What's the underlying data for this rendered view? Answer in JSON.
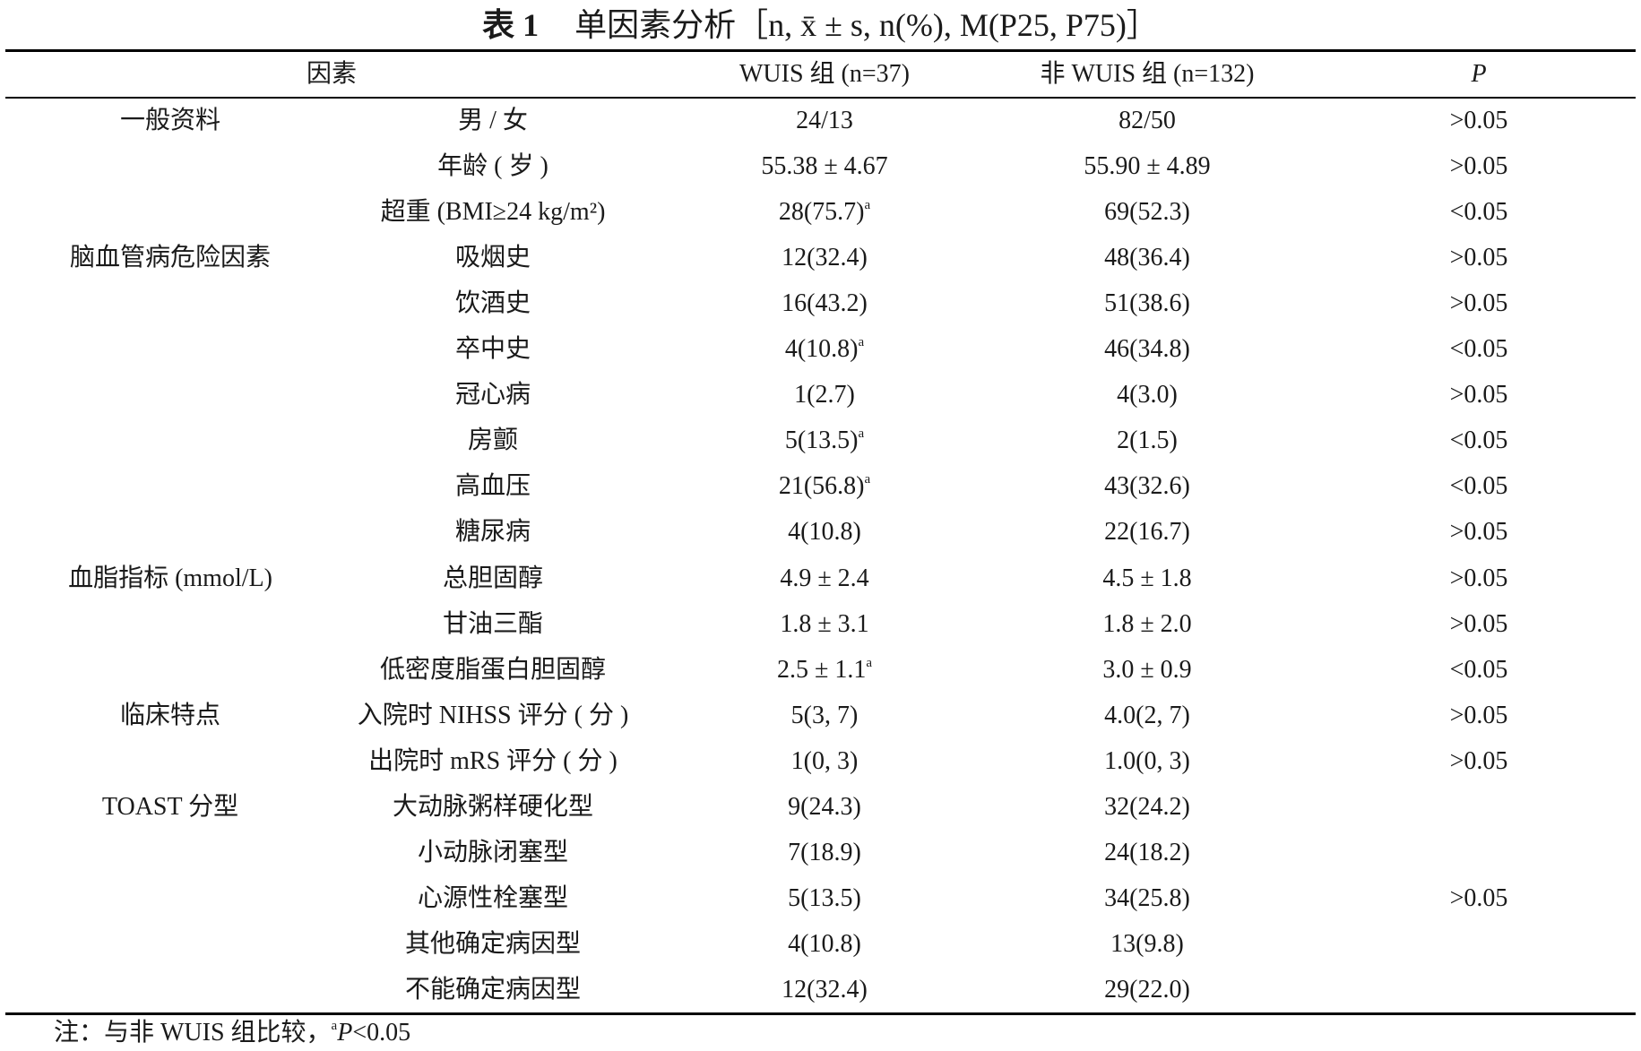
{
  "table": {
    "caption_label": "表 1",
    "caption_text": "单因素分析［n, x̄ ± s, n(%), M(P25, P75)］",
    "headers": {
      "factor": "因素",
      "wuis": "WUIS 组 (n=37)",
      "non_wuis": "非 WUIS 组 (n=132)",
      "p": "P"
    },
    "rows": [
      {
        "category": "一般资料",
        "item": "男 / 女",
        "wuis": "24/13",
        "wuis_mark": "",
        "non_wuis": "82/50",
        "p": ">0.05"
      },
      {
        "category": "",
        "item": "年龄 ( 岁 )",
        "wuis": "55.38 ± 4.67",
        "wuis_mark": "",
        "non_wuis": "55.90 ± 4.89",
        "p": ">0.05"
      },
      {
        "category": "",
        "item": "超重 (BMI≥24 kg/m²)",
        "wuis": "28(75.7)",
        "wuis_mark": "a",
        "non_wuis": "69(52.3)",
        "p": "<0.05"
      },
      {
        "category": "脑血管病危险因素",
        "item": "吸烟史",
        "wuis": "12(32.4)",
        "wuis_mark": "",
        "non_wuis": "48(36.4)",
        "p": ">0.05"
      },
      {
        "category": "",
        "item": "饮酒史",
        "wuis": "16(43.2)",
        "wuis_mark": "",
        "non_wuis": "51(38.6)",
        "p": ">0.05"
      },
      {
        "category": "",
        "item": "卒中史",
        "wuis": "4(10.8)",
        "wuis_mark": "a",
        "non_wuis": "46(34.8)",
        "p": "<0.05"
      },
      {
        "category": "",
        "item": "冠心病",
        "wuis": "1(2.7)",
        "wuis_mark": "",
        "non_wuis": "4(3.0)",
        "p": ">0.05"
      },
      {
        "category": "",
        "item": "房颤",
        "wuis": "5(13.5)",
        "wuis_mark": "a",
        "non_wuis": "2(1.5)",
        "p": "<0.05"
      },
      {
        "category": "",
        "item": "高血压",
        "wuis": "21(56.8)",
        "wuis_mark": "a",
        "non_wuis": "43(32.6)",
        "p": "<0.05"
      },
      {
        "category": "",
        "item": "糖尿病",
        "wuis": "4(10.8)",
        "wuis_mark": "",
        "non_wuis": "22(16.7)",
        "p": ">0.05"
      },
      {
        "category": "血脂指标 (mmol/L)",
        "item": "总胆固醇",
        "wuis": "4.9 ± 2.4",
        "wuis_mark": "",
        "non_wuis": "4.5 ± 1.8",
        "p": ">0.05"
      },
      {
        "category": "",
        "item": "甘油三酯",
        "wuis": "1.8 ± 3.1",
        "wuis_mark": "",
        "non_wuis": "1.8 ± 2.0",
        "p": ">0.05"
      },
      {
        "category": "",
        "item": "低密度脂蛋白胆固醇",
        "wuis": "2.5 ± 1.1",
        "wuis_mark": "a",
        "non_wuis": "3.0 ± 0.9",
        "p": "<0.05"
      },
      {
        "category": "临床特点",
        "item": "入院时 NIHSS 评分 ( 分 )",
        "wuis": "5(3, 7)",
        "wuis_mark": "",
        "non_wuis": "4.0(2, 7)",
        "p": ">0.05"
      },
      {
        "category": "",
        "item": "出院时 mRS 评分 ( 分 )",
        "wuis": "1(0, 3)",
        "wuis_mark": "",
        "non_wuis": "1.0(0, 3)",
        "p": ">0.05"
      },
      {
        "category": "TOAST 分型",
        "item": "大动脉粥样硬化型",
        "wuis": "9(24.3)",
        "wuis_mark": "",
        "non_wuis": "32(24.2)",
        "p": ""
      },
      {
        "category": "",
        "item": "小动脉闭塞型",
        "wuis": "7(18.9)",
        "wuis_mark": "",
        "non_wuis": "24(18.2)",
        "p": ""
      },
      {
        "category": "",
        "item": "心源性栓塞型",
        "wuis": "5(13.5)",
        "wuis_mark": "",
        "non_wuis": "34(25.8)",
        "p": ">0.05"
      },
      {
        "category": "",
        "item": "其他确定病因型",
        "wuis": "4(10.8)",
        "wuis_mark": "",
        "non_wuis": "13(9.8)",
        "p": ""
      },
      {
        "category": "",
        "item": "不能确定病因型",
        "wuis": "12(32.4)",
        "wuis_mark": "",
        "non_wuis": "29(22.0)",
        "p": ""
      }
    ],
    "note": {
      "prefix": "注：与非 WUIS 组比较，",
      "mark": "a",
      "p_symbol": "P",
      "threshold": "<0.05"
    }
  }
}
